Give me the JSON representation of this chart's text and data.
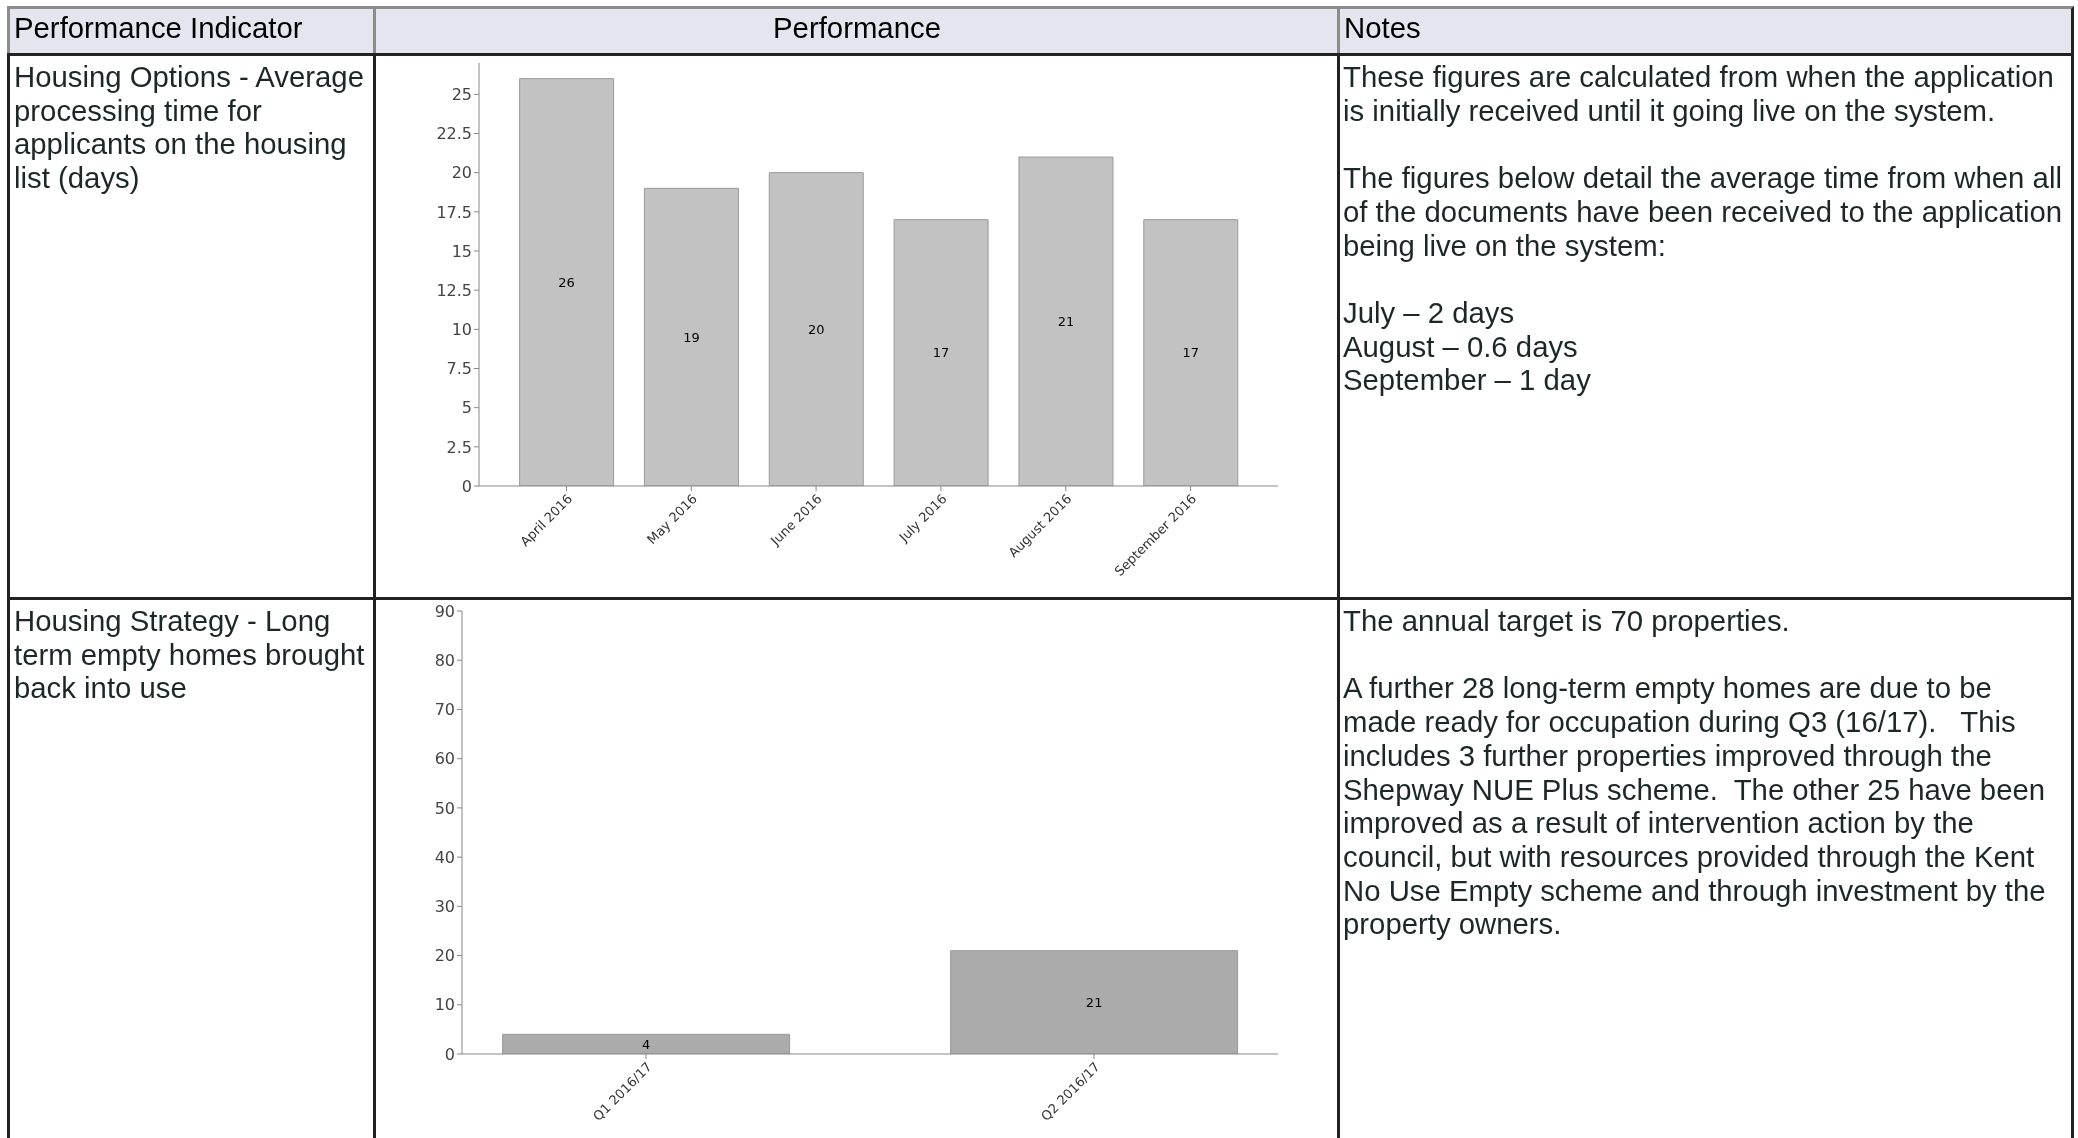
{
  "chart_data": [
    {
      "type": "other",
      "annotations": [
        "Performance Indicator",
        "Performance",
        "Notes"
      ]
    },
    {
      "type": "bar",
      "title": "Housing Options - Average processing time for applicants on the housing list (days)",
      "categories": [
        "April 2016",
        "May 2016",
        "June 2016",
        "July 2016",
        "August 2016",
        "September 2016"
      ],
      "values": [
        26,
        19,
        20,
        17,
        21,
        17
      ],
      "color": "#c2c2c2",
      "ylim": [
        0,
        27
      ],
      "yticks": [
        0,
        2.5,
        5,
        7.5,
        10,
        12.5,
        15,
        17.5,
        20,
        22.5,
        25
      ],
      "data_labels": true,
      "annotations": [
        "These figures are calculated from when the application is initially received until it going live on the system.",
        "The figures below detail the average time from when all of the documents have been received to the application being live on the system:",
        "July – 2 days\nAugust – 0.6 days\nSeptember – 1 day"
      ]
    },
    {
      "type": "bar",
      "title": "Housing Strategy - Long term empty homes brought back into use",
      "categories": [
        "Q1 2016/17",
        "Q2 2016/17"
      ],
      "values": [
        4,
        21
      ],
      "color": "#ababab",
      "ylim": [
        0,
        90
      ],
      "yticks": [
        0,
        10,
        20,
        30,
        40,
        50,
        60,
        70,
        80,
        90
      ],
      "data_labels": true,
      "annotations": [
        "The annual target is 70 properties.",
        "A further 28 long-term empty homes are due to be made ready for occupation during Q3 (16/17).   This includes 3 further properties improved through the Shepway NUE Plus scheme.  The other 25 have been improved as a result of intervention action by the council, but with resources provided through the Kent No Use Empty scheme and through investment by the property owners."
      ]
    }
  ]
}
